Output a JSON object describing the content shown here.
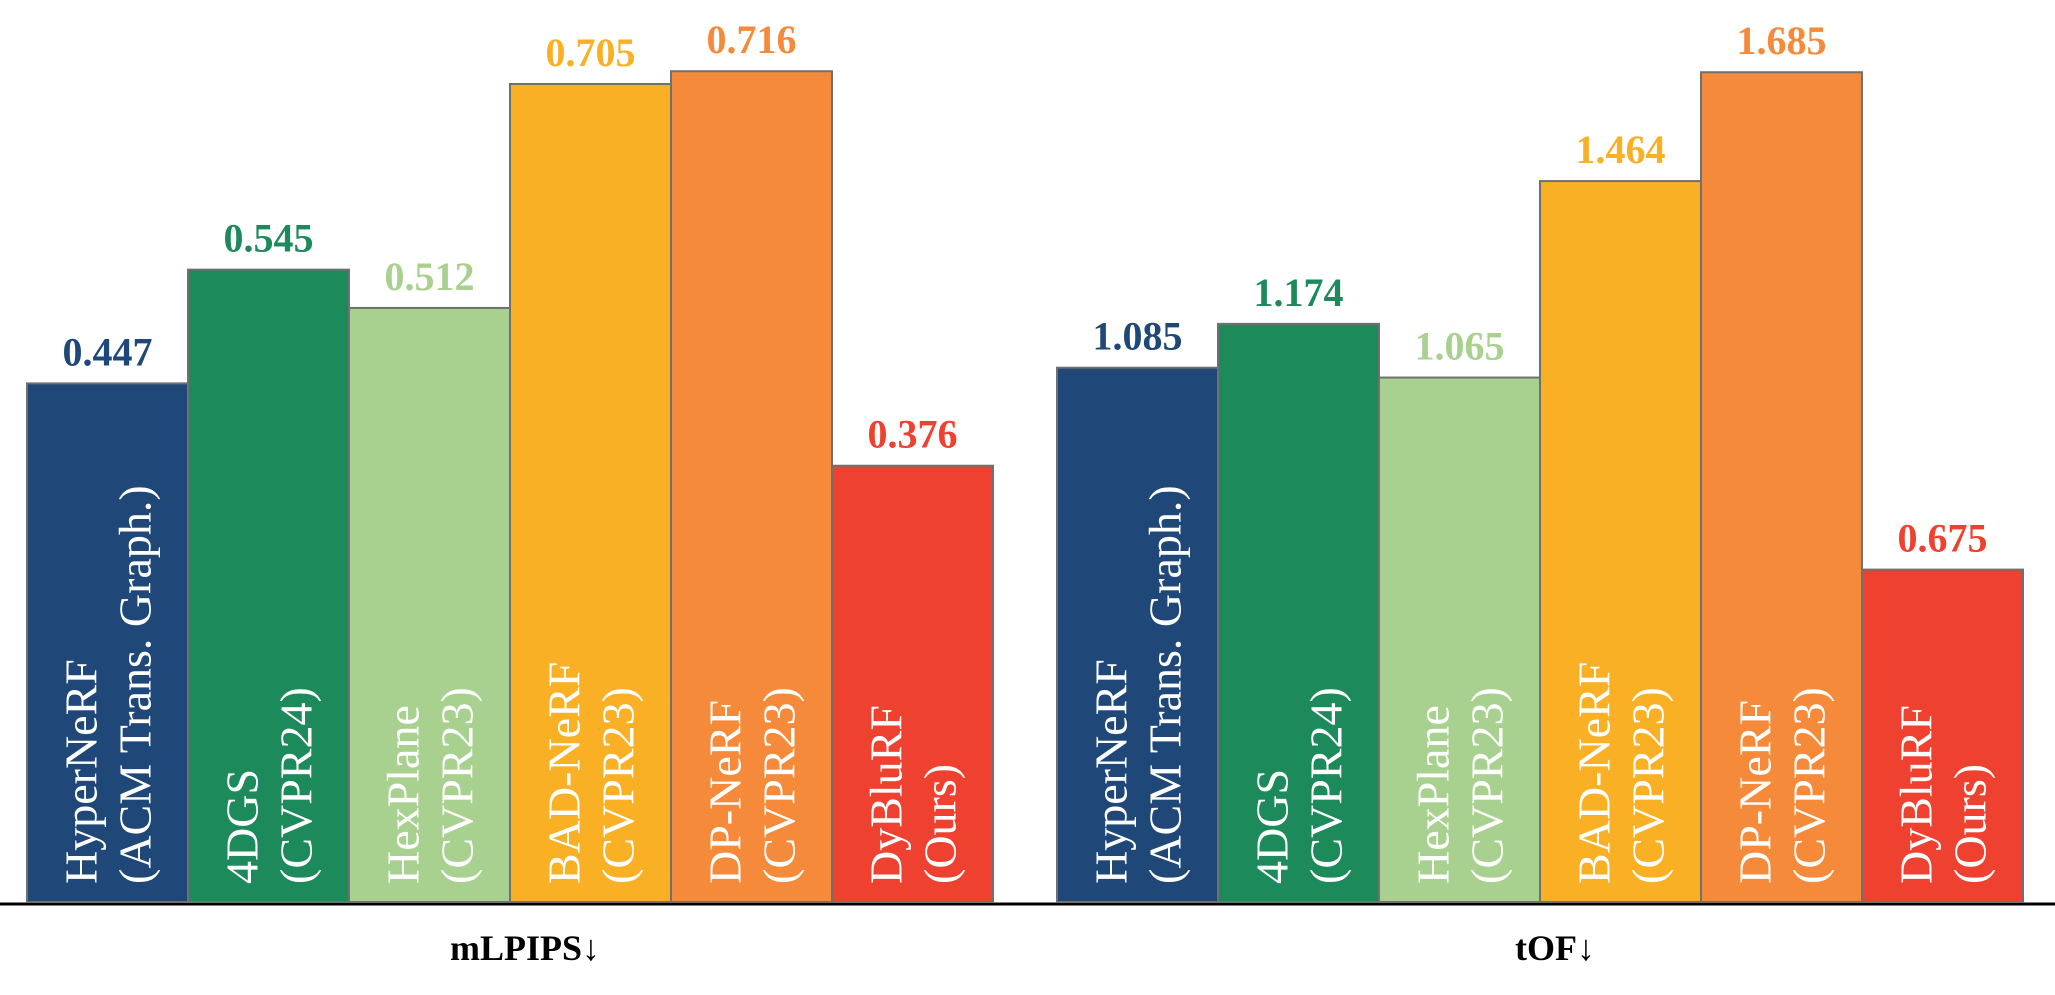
{
  "chart_data": [
    {
      "type": "bar",
      "xlabel": "mLPIPS",
      "xlabel_arrow": "↓",
      "categories": [
        [
          "HyperNeRF",
          "(ACM Trans. Graph.)"
        ],
        [
          "4DGS",
          "(CVPR24)"
        ],
        [
          "HexPlane",
          "(CVPR23)"
        ],
        [
          "BAD-NeRF",
          "(CVPR23)"
        ],
        [
          "DP-NeRF",
          "(CVPR23)"
        ],
        [
          "DyBluRF",
          "(Ours)"
        ]
      ],
      "values": [
        0.447,
        0.545,
        0.512,
        0.705,
        0.716,
        0.376
      ],
      "value_labels": [
        "0.447",
        "0.545",
        "0.512",
        "0.705",
        "0.716",
        "0.376"
      ],
      "colors": [
        "#1f4878",
        "#1c8a5a",
        "#a8d18f",
        "#f9b025",
        "#f58a3a",
        "#ee4130"
      ],
      "label_colors": [
        "#1f4878",
        "#1c8a5a",
        "#a8d18f",
        "#f9b025",
        "#f58a3a",
        "#ee4130"
      ],
      "ylim": [
        0,
        0.73
      ],
      "grid": false,
      "legend": "none"
    },
    {
      "type": "bar",
      "xlabel": "tOF",
      "xlabel_arrow": "↓",
      "categories": [
        [
          "HyperNeRF",
          "(ACM Trans. Graph.)"
        ],
        [
          "4DGS",
          "(CVPR24)"
        ],
        [
          "HexPlane",
          "(CVPR23)"
        ],
        [
          "BAD-NeRF",
          "(CVPR23)"
        ],
        [
          "DP-NeRF",
          "(CVPR23)"
        ],
        [
          "DyBluRF",
          "(Ours)"
        ]
      ],
      "values": [
        1.085,
        1.174,
        1.065,
        1.464,
        1.685,
        0.675
      ],
      "value_labels": [
        "1.085",
        "1.174",
        "1.065",
        "1.464",
        "1.685",
        "0.675"
      ],
      "colors": [
        "#1f4878",
        "#1c8a5a",
        "#a8d18f",
        "#f9b025",
        "#f58a3a",
        "#ee4130"
      ],
      "label_colors": [
        "#1f4878",
        "#1c8a5a",
        "#a8d18f",
        "#f9b025",
        "#f58a3a",
        "#ee4130"
      ],
      "ylim": [
        0,
        1.72
      ],
      "grid": false,
      "legend": "none"
    }
  ]
}
